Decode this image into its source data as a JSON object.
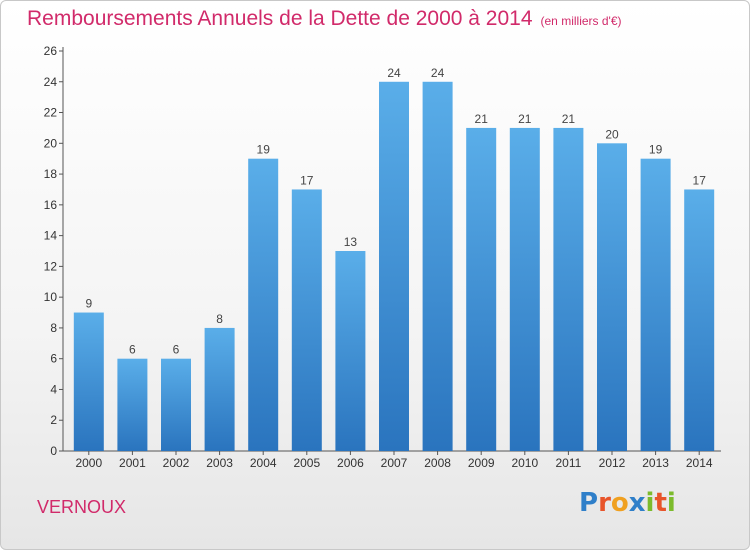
{
  "chart_data": {
    "type": "bar",
    "title": "Remboursements Annuels de la Dette de 2000 à 2014",
    "subtitle": "(en milliers d'€)",
    "xlabel": "",
    "ylabel": "",
    "categories": [
      "2000",
      "2001",
      "2002",
      "2003",
      "2004",
      "2005",
      "2006",
      "2007",
      "2008",
      "2009",
      "2010",
      "2011",
      "2012",
      "2013",
      "2014"
    ],
    "values": [
      9,
      6,
      6,
      8,
      19,
      17,
      13,
      24,
      24,
      21,
      21,
      21,
      20,
      19,
      17
    ],
    "ylim": [
      0,
      26
    ],
    "yticks": [
      0,
      2,
      4,
      6,
      8,
      10,
      12,
      14,
      16,
      18,
      20,
      22,
      24,
      26
    ],
    "grid": false,
    "legend": "none",
    "bar_color": "#3f8fd6",
    "bar_color_light": "#5aaee9",
    "bar_color_dark": "#2a74be"
  },
  "footer": {
    "location": "VERNOUX",
    "logo_letters": [
      "P",
      "r",
      "o",
      "x",
      "i",
      "t",
      "i"
    ],
    "logo_colors": [
      "#2f7fc9",
      "#e8542a",
      "#f0a020",
      "#2f7fc9",
      "#7cbb2c",
      "#e8542a",
      "#7cbb2c"
    ]
  }
}
